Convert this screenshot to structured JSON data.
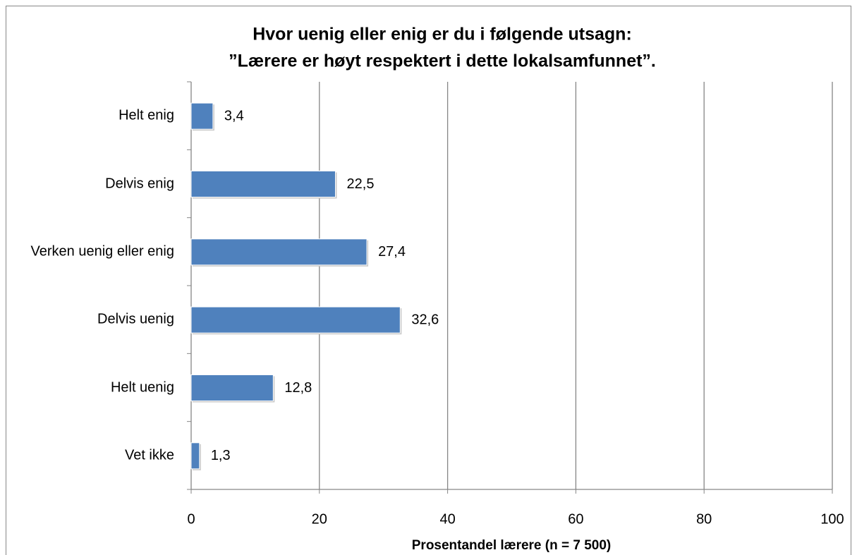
{
  "chart_data": {
    "type": "bar",
    "orientation": "horizontal",
    "title": [
      "Hvor uenig eller enig er du i følgende utsagn:",
      "”Lærere er høyt respektert i dette lokalsamfunnet”."
    ],
    "categories": [
      "Helt enig",
      "Delvis enig",
      "Verken uenig eller enig",
      "Delvis uenig",
      "Helt uenig",
      "Vet ikke"
    ],
    "values": [
      3.4,
      22.5,
      27.4,
      32.6,
      12.8,
      1.3
    ],
    "value_labels": [
      "3,4",
      "22,5",
      "27,4",
      "32,6",
      "12,8",
      "1,3"
    ],
    "color": "#4f81bd",
    "xlim": [
      0,
      100
    ],
    "xticks": [
      0,
      20,
      40,
      60,
      80,
      100
    ],
    "grid": true,
    "x_label": "Prosentandel lærere (n = 7 500)"
  }
}
